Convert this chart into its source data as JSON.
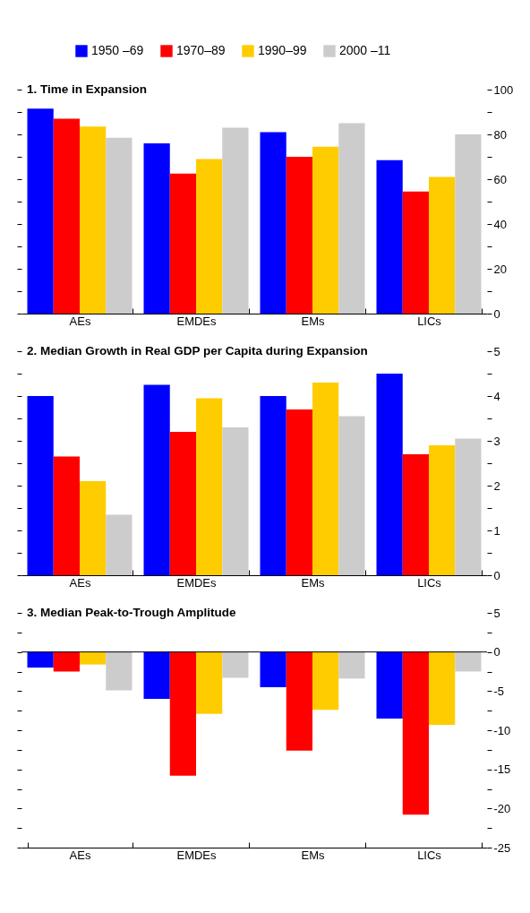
{
  "chart_data": [
    {
      "type": "bar",
      "title": "1. Time in Expansion",
      "categories": [
        "AEs",
        "EMDEs",
        "EMs",
        "LICs"
      ],
      "series": [
        {
          "name": "1950 –69",
          "color": "#0000ff",
          "values": [
            91.5,
            76,
            81,
            68.5
          ]
        },
        {
          "name": "1970–89",
          "color": "#ff0000",
          "values": [
            87,
            62.5,
            70,
            54.5
          ]
        },
        {
          "name": "1990–99",
          "color": "#ffcc00",
          "values": [
            83.5,
            69,
            74.5,
            61
          ]
        },
        {
          "name": "2000 –11",
          "color": "#cccccc",
          "values": [
            78.5,
            83,
            85,
            80
          ]
        }
      ],
      "ylim": [
        0,
        100
      ],
      "yticks": [
        0,
        {
          "value": 10,
          "label": null
        },
        20,
        {
          "value": 30,
          "label": null
        },
        40,
        {
          "value": 50,
          "label": null
        },
        60,
        {
          "value": 70,
          "label": null
        },
        80,
        {
          "value": 90,
          "label": null
        },
        100
      ],
      "legend": "top",
      "grid": false
    },
    {
      "type": "bar",
      "title": "2. Median Growth in Real GDP per Capita during Expansion",
      "categories": [
        "AEs",
        "EMDEs",
        "EMs",
        "LICs"
      ],
      "series": [
        {
          "color": "#0000ff",
          "values": [
            4.0,
            4.25,
            4.0,
            4.5
          ]
        },
        {
          "color": "#ff0000",
          "values": [
            2.65,
            3.2,
            3.7,
            2.7
          ]
        },
        {
          "color": "#ffcc00",
          "values": [
            2.1,
            3.95,
            4.3,
            2.9
          ]
        },
        {
          "color": "#cccccc",
          "values": [
            1.35,
            3.3,
            3.55,
            3.05
          ]
        }
      ],
      "ylim": [
        0,
        5
      ],
      "yticks": [
        0,
        {
          "value": 0.5,
          "label": null
        },
        1,
        {
          "value": 1.5,
          "label": null
        },
        2,
        {
          "value": 2.5,
          "label": null
        },
        3,
        {
          "value": 3.5,
          "label": null
        },
        4,
        {
          "value": 4.5,
          "label": null
        },
        5
      ],
      "grid": false
    },
    {
      "type": "bar",
      "title": "3. Median Peak-to-Trough Amplitude",
      "categories": [
        "AEs",
        "EMDEs",
        "EMs",
        "LICs"
      ],
      "series": [
        {
          "color": "#0000ff",
          "values": [
            -2,
            -6,
            -4.5,
            -8.5
          ]
        },
        {
          "color": "#ff0000",
          "values": [
            -2.5,
            -15.8,
            -12.6,
            -20.8
          ]
        },
        {
          "color": "#ffcc00",
          "values": [
            -1.6,
            -7.9,
            -7.4,
            -9.3
          ]
        },
        {
          "color": "#cccccc",
          "values": [
            -4.9,
            -3.3,
            -3.4,
            -2.5
          ]
        }
      ],
      "ylim": [
        -25,
        5
      ],
      "yticks": [
        -25,
        {
          "value": -22.5,
          "label": null
        },
        -20,
        {
          "value": -17.5,
          "label": null
        },
        -15,
        {
          "value": -12.5,
          "label": null
        },
        -10,
        {
          "value": -7.5,
          "label": null
        },
        -5,
        {
          "value": -2.5,
          "label": null
        },
        0,
        {
          "value": 2.5,
          "label": null
        },
        5
      ],
      "ref_lines": [
        {
          "axis": "y",
          "value": 0
        }
      ],
      "grid": false
    }
  ]
}
